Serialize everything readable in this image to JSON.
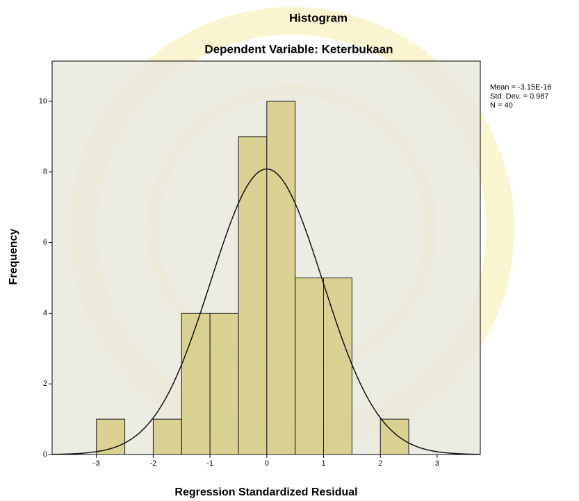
{
  "chart_data": {
    "type": "histogram",
    "title": "Histogram",
    "subtitle": "Dependent Variable: Keterbukaan",
    "x_label": "Regression Standardized Residual",
    "y_label": "Frequency",
    "bins": [
      -3,
      -2.5,
      -2,
      -1.5,
      -1,
      -0.5,
      0,
      0.5,
      1,
      1.5,
      2,
      2.5
    ],
    "values": [
      1,
      0,
      1,
      4,
      4,
      9,
      10,
      5,
      5,
      0,
      1
    ],
    "color": "#d6cc84",
    "edge_color": "#1a1a1a",
    "curve_color": "#111111",
    "xlim": [
      -3.78,
      3.76
    ],
    "ylim": [
      0,
      11.14
    ],
    "xticks": [
      -3,
      -2,
      -1,
      0,
      1,
      2,
      3
    ],
    "yticks": [
      0,
      2,
      4,
      6,
      8,
      10
    ],
    "stats": {
      "mean": {
        "value": -3.15e-16,
        "label": "Mean = -3.15E-16"
      },
      "sd": {
        "value": 0.987,
        "label": "Std. Dev. = 0.987"
      },
      "n": {
        "value": 40,
        "label": "N = 40"
      }
    }
  }
}
